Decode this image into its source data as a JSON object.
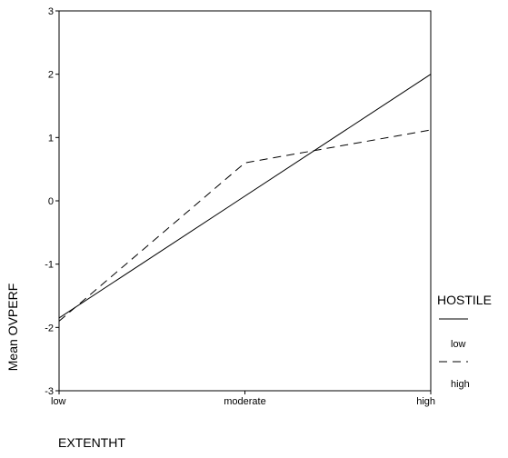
{
  "chart_data": {
    "type": "line",
    "title": "",
    "xlabel": "EXTENTHT",
    "ylabel": "Mean OVPERF",
    "categories": [
      "low",
      "moderate",
      "high"
    ],
    "ylim": [
      -3,
      3
    ],
    "yticks": [
      3,
      2,
      1,
      0,
      -1,
      -2,
      -3
    ],
    "grid": false,
    "legend": {
      "title": "HOSTILE",
      "placement": "right"
    },
    "series": [
      {
        "name": "low",
        "line_style": "solid",
        "points": [
          {
            "x": "low",
            "y": -1.85
          },
          {
            "x": "high",
            "y": 2.0
          }
        ]
      },
      {
        "name": "high",
        "line_style": "dashed",
        "points": [
          {
            "x": "low",
            "y": -1.9
          },
          {
            "x": "moderate",
            "y": 0.6
          },
          {
            "x": "high",
            "y": 1.12
          }
        ]
      }
    ]
  }
}
